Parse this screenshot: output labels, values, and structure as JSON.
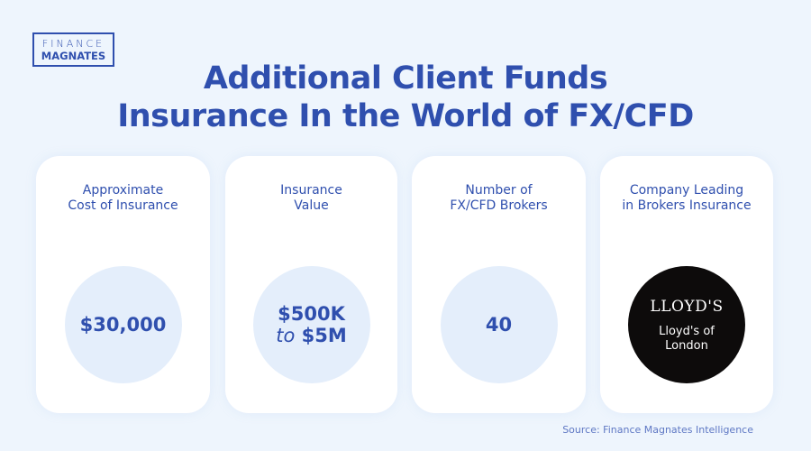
{
  "logo": {
    "line1": "FINANCE",
    "line2": "MAGNATES"
  },
  "title": {
    "line1": "Additional Client Funds",
    "line2": "Insurance In the World of FX/CFD"
  },
  "cards": [
    {
      "label1": "Approximate",
      "label2": "Cost of Insurance",
      "value": "$30,000"
    },
    {
      "label1": "Insurance",
      "label2": "Value",
      "value_line1": "$500K",
      "value_to": "to",
      "value_line2": "$5M"
    },
    {
      "label1": "Number of",
      "label2": "FX/CFD Brokers",
      "value": "40"
    },
    {
      "label1": "Company Leading",
      "label2": "in Brokers Insurance",
      "logo_text": "LLOYD'S",
      "value_line1": "Lloyd's of",
      "value_line2": "London"
    }
  ],
  "source": "Source: Finance Magnates Intelligence",
  "colors": {
    "brand": "#2f4fae",
    "background": "#eef5fd",
    "circle": "#e4eefb"
  }
}
